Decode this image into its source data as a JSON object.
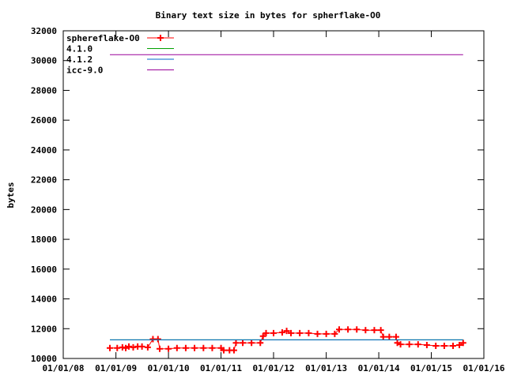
{
  "chart_data": {
    "type": "line",
    "title": "Binary text size in bytes for spherflake-O0",
    "xlabel": "",
    "ylabel": "bytes",
    "ylim": [
      10000,
      32000
    ],
    "yticks": [
      "10000",
      "12000",
      "14000",
      "16000",
      "18000",
      "20000",
      "22000",
      "24000",
      "26000",
      "28000",
      "30000",
      "32000"
    ],
    "xlim": [
      "2008-01-01",
      "2016-01-01"
    ],
    "xticks": [
      "01/01/08",
      "01/01/09",
      "01/01/10",
      "01/01/11",
      "01/01/12",
      "01/01/13",
      "01/01/14",
      "01/01/15",
      "01/01/16"
    ],
    "grid": false,
    "legend_position": "top-left",
    "series": [
      {
        "name": "sphereflake-O0",
        "color": "#ff0000",
        "marker": "plus",
        "points": [
          [
            "2008-11-20",
            10700
          ],
          [
            "2009-01-10",
            10700
          ],
          [
            "2009-02-15",
            10750
          ],
          [
            "2009-03-10",
            10700
          ],
          [
            "2009-04-01",
            10800
          ],
          [
            "2009-05-01",
            10750
          ],
          [
            "2009-06-01",
            10800
          ],
          [
            "2009-07-01",
            10800
          ],
          [
            "2009-08-10",
            10750
          ],
          [
            "2009-09-15",
            11300
          ],
          [
            "2009-10-20",
            11300
          ],
          [
            "2009-11-01",
            10650
          ],
          [
            "2010-01-01",
            10650
          ],
          [
            "2010-03-01",
            10700
          ],
          [
            "2010-05-01",
            10700
          ],
          [
            "2010-07-01",
            10700
          ],
          [
            "2010-09-01",
            10700
          ],
          [
            "2010-11-01",
            10700
          ],
          [
            "2011-01-01",
            10700
          ],
          [
            "2011-01-20",
            10550
          ],
          [
            "2011-03-01",
            10550
          ],
          [
            "2011-04-01",
            10550
          ],
          [
            "2011-04-15",
            11050
          ],
          [
            "2011-06-01",
            11050
          ],
          [
            "2011-08-01",
            11050
          ],
          [
            "2011-10-01",
            11050
          ],
          [
            "2011-10-20",
            11500
          ],
          [
            "2011-11-10",
            11700
          ],
          [
            "2012-01-01",
            11700
          ],
          [
            "2012-03-01",
            11750
          ],
          [
            "2012-04-01",
            11850
          ],
          [
            "2012-05-01",
            11700
          ],
          [
            "2012-07-01",
            11700
          ],
          [
            "2012-09-01",
            11700
          ],
          [
            "2012-11-01",
            11650
          ],
          [
            "2013-01-01",
            11650
          ],
          [
            "2013-03-01",
            11650
          ],
          [
            "2013-04-01",
            11950
          ],
          [
            "2013-06-01",
            11950
          ],
          [
            "2013-08-01",
            11950
          ],
          [
            "2013-10-01",
            11900
          ],
          [
            "2013-12-01",
            11900
          ],
          [
            "2014-01-15",
            11900
          ],
          [
            "2014-02-01",
            11450
          ],
          [
            "2014-03-15",
            11450
          ],
          [
            "2014-05-01",
            11450
          ],
          [
            "2014-05-10",
            11050
          ],
          [
            "2014-06-01",
            10950
          ],
          [
            "2014-08-01",
            10950
          ],
          [
            "2014-10-01",
            10950
          ],
          [
            "2014-12-01",
            10900
          ],
          [
            "2015-02-01",
            10850
          ],
          [
            "2015-04-01",
            10850
          ],
          [
            "2015-06-01",
            10850
          ],
          [
            "2015-07-15",
            10900
          ],
          [
            "2015-08-10",
            11050
          ]
        ]
      },
      {
        "name": "4.1.0",
        "color": "#00a000",
        "marker": "none",
        "points": [
          [
            "2008-11-20",
            11250
          ],
          [
            "2015-08-10",
            11250
          ]
        ]
      },
      {
        "name": "4.1.2",
        "color": "#0066cc",
        "marker": "none",
        "points": [
          [
            "2008-11-20",
            11250
          ],
          [
            "2015-08-10",
            11250
          ]
        ]
      },
      {
        "name": "icc-9.0",
        "color": "#990099",
        "marker": "none",
        "points": [
          [
            "2008-11-20",
            30400
          ],
          [
            "2015-08-10",
            30400
          ]
        ]
      }
    ]
  }
}
